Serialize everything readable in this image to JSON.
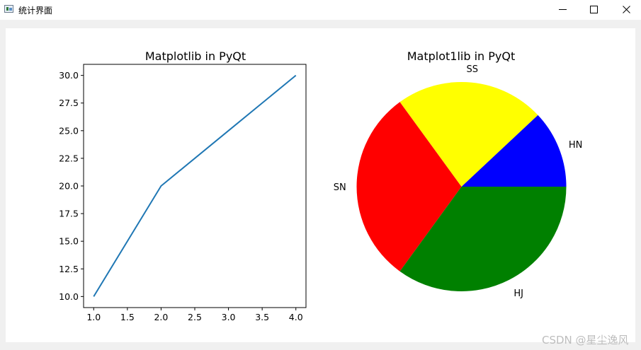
{
  "window": {
    "title": "统计界面"
  },
  "watermark": "CSDN @星尘逸风",
  "chart_data": [
    {
      "type": "line",
      "title": "Matplotlib in PyQt",
      "x": [
        1.0,
        2.0,
        3.0,
        4.0
      ],
      "y": [
        10,
        20,
        25,
        30
      ],
      "xlim": [
        0.85,
        4.15
      ],
      "ylim": [
        9.0,
        31.0
      ],
      "xticks": [
        1.0,
        1.5,
        2.0,
        2.5,
        3.0,
        3.5,
        4.0
      ],
      "xtick_labels": [
        "1.0",
        "1.5",
        "2.0",
        "2.5",
        "3.0",
        "3.5",
        "4.0"
      ],
      "yticks": [
        10.0,
        12.5,
        15.0,
        17.5,
        20.0,
        22.5,
        25.0,
        27.5,
        30.0
      ],
      "ytick_labels": [
        "10.0",
        "12.5",
        "15.0",
        "17.5",
        "20.0",
        "22.5",
        "25.0",
        "27.5",
        "30.0"
      ],
      "line_color": "#1f77b4",
      "grid": false
    },
    {
      "type": "pie",
      "title": "Matplot1lib in PyQt",
      "labels": [
        "HN",
        "SS",
        "SN",
        "HJ"
      ],
      "values": [
        12,
        23,
        30,
        35
      ],
      "colors": [
        "#0000ff",
        "#ffff00",
        "#ff0000",
        "#008000"
      ],
      "start_angle": 0
    }
  ]
}
